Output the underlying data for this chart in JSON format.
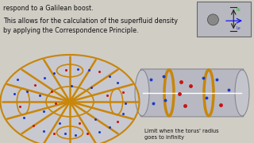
{
  "bg_color": "#d0cdc5",
  "text1": "respond to a Galilean boost.",
  "text2": "This allows for the calculation of the superfluid density\nby applying the Correspondence Principle.",
  "caption": "Limit when the torus' radius\ngoes to infinity",
  "text_color": "#111111",
  "gold_color": "#c8860a",
  "gray_torus": "#c4c4cc",
  "gray_cyl": "#b4b4bc",
  "blue_dot": "#1a3acc",
  "red_dot": "#cc1111"
}
